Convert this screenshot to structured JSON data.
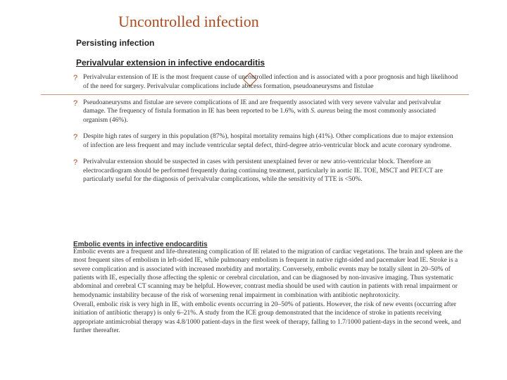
{
  "title": "Uncontrolled infection",
  "sub1": "Persisting infection",
  "sub2": "Perivalvular extension in infective endocarditis",
  "bullets": [
    "Perivalvular extension of IE is the most frequent cause of uncontrolled infection and is associated with a poor prognosis and high likelihood of the need for surgery. Perivalvular complications include abscess formation, pseudoaneurysms and fistulae",
    "Pseudoaneurysms and fistulae are severe complications of IE and are frequently associated with very severe valvular and perivalvular damage.  The frequency of fistula formation in IE has been reported to be 1.6%, with <span class=\"italic\">S. aureus</span> being the most commonly associated organism (46%).",
    "Despite high rates of surgery in this population (87%), hospital mortality remains high (41%).  Other complications due to major extension of infection are less frequent and may include ventricular septal defect, third-degree atrio-ventricular block and acute coronary syndrome.",
    "Perivalvular extension should be suspected in cases with persistent unexplained fever or new atrio-ventricular block. Therefore an electrocardiogram should be performed frequently during continuing treatment, particularly in aortic IE. TOE, MSCT and PET/CT are particularly useful for the diagnosis of perivalvular complications, while the sensitivity of TTE is <50%."
  ],
  "embolic_heading": "Embolic events in infective endocarditis",
  "embolic_p1": "Embolic events are a frequent and life-threatening complication of IE related to the migration of cardiac vegetations. The brain and spleen are the most frequent sites of embolism in left-sided IE, while pulmonary embolism is frequent in native right-sided and pacemaker lead IE. Stroke is a severe complication and is associated with increased morbidity and mortality.  Conversely, embolic events may be totally silent in 20–50% of patients with IE, especially those affecting the splenic or cerebral circulation, and can be diagnosed by non-invasive imaging.  Thus systematic abdominal and cerebral CT scanning may be helpful. However, contrast media should be used with caution in patients with renal impairment or hemodynamic instability because of the risk of worsening renal impairment in combination with antibiotic nephrotoxicity.",
  "embolic_p2": "Overall, embolic risk is very high in IE, with embolic events occurring in 20–50% of patients.  However, the risk of new events (occurring after initiation of antibiotic therapy) is only 6–21%.  A study from the ICE group demonstrated that the incidence of stroke in patients receiving appropriate antimicrobial therapy was 4.8/1000 patient-days in the first week of therapy, falling to 1.7/1000 patient-days in the second week, and further thereafter.",
  "colors": {
    "accent": "#a84a1e",
    "line": "#c9967a",
    "text": "#333333",
    "bg": "#ffffff"
  }
}
